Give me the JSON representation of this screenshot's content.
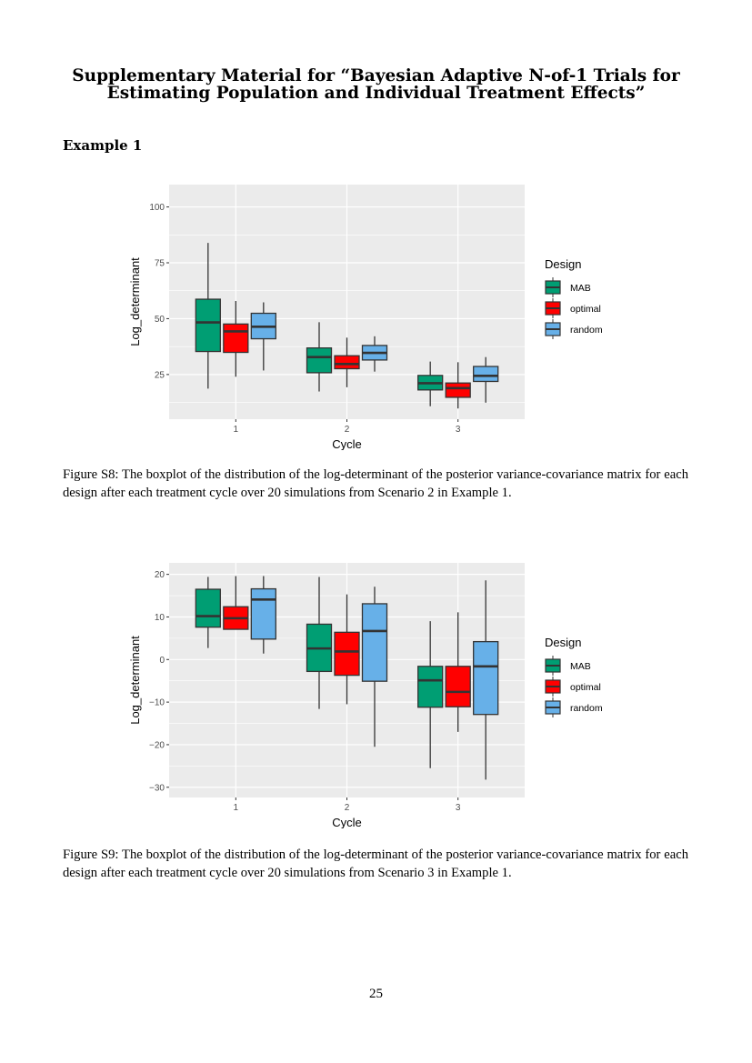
{
  "title_line1": "Supplementary Material for “Bayesian Adaptive N-of-1 Trials for",
  "title_line2": "Estimating Population and Individual Treatment Effects”",
  "section": "Example 1",
  "captions": [
    "Figure S8: The boxplot of the distribution of the log-determinant of the posterior variance-covariance matrix for each design after each treatment cycle over 20 simulations from Scenario 2 in Example 1.",
    "Figure S9: The boxplot of the distribution of the log-determinant of the posterior variance-covariance matrix for each design after each treatment cycle over 20 simulations from Scenario 3 in Example 1."
  ],
  "page_number": "25",
  "chart_data": [
    {
      "type": "boxplot",
      "xlabel": "Cycle",
      "ylabel": "Log_determinant",
      "categories": [
        "1",
        "2",
        "3"
      ],
      "ylim": [
        5,
        110
      ],
      "yticks": [
        25,
        50,
        75,
        100
      ],
      "grid": true,
      "legend": {
        "title": "Design",
        "placement": "right"
      },
      "series": [
        {
          "name": "MAB",
          "color": "#009E73",
          "boxes": [
            {
              "min": 18.7,
              "q1": 35.3,
              "median": 48.3,
              "q3": 58.7,
              "max": 83.9
            },
            {
              "min": 17.4,
              "q1": 25.8,
              "median": 32.8,
              "q3": 36.9,
              "max": 48.4
            },
            {
              "min": 10.8,
              "q1": 18.1,
              "median": 21.1,
              "q3": 24.6,
              "max": 30.8
            }
          ]
        },
        {
          "name": "optimal",
          "color": "#FF0000",
          "boxes": [
            {
              "min": 24.0,
              "q1": 34.9,
              "median": 44.3,
              "q3": 47.6,
              "max": 57.9
            },
            {
              "min": 19.3,
              "q1": 27.6,
              "median": 29.7,
              "q3": 33.4,
              "max": 41.5
            },
            {
              "min": 9.8,
              "q1": 14.8,
              "median": 18.9,
              "q3": 21.2,
              "max": 30.5
            }
          ]
        },
        {
          "name": "random",
          "color": "#67B0E8",
          "boxes": [
            {
              "min": 26.8,
              "q1": 41.0,
              "median": 46.4,
              "q3": 52.4,
              "max": 57.3
            },
            {
              "min": 26.3,
              "q1": 31.5,
              "median": 34.7,
              "q3": 38.0,
              "max": 42.1
            },
            {
              "min": 12.4,
              "q1": 21.9,
              "median": 24.4,
              "q3": 28.6,
              "max": 32.8
            }
          ]
        }
      ]
    },
    {
      "type": "boxplot",
      "xlabel": "Cycle",
      "ylabel": "Log_determinant",
      "categories": [
        "1",
        "2",
        "3"
      ],
      "ylim": [
        -32.4,
        22.7
      ],
      "yticks": [
        -30,
        -20,
        -10,
        0,
        10,
        20
      ],
      "grid": true,
      "legend": {
        "title": "Design",
        "placement": "right"
      },
      "series": [
        {
          "name": "MAB",
          "color": "#009E73",
          "boxes": [
            {
              "min": 2.7,
              "q1": 7.6,
              "median": 10.2,
              "q3": 16.5,
              "max": 19.4
            },
            {
              "min": -11.6,
              "q1": -2.8,
              "median": 2.6,
              "q3": 8.3,
              "max": 19.4
            },
            {
              "min": -25.5,
              "q1": -11.2,
              "median": -4.9,
              "q3": -1.6,
              "max": 9.0
            }
          ]
        },
        {
          "name": "optimal",
          "color": "#FF0000",
          "boxes": [
            {
              "min": 7.0,
              "q1": 7.1,
              "median": 9.7,
              "q3": 12.4,
              "max": 19.6
            },
            {
              "min": -10.5,
              "q1": -3.7,
              "median": 1.9,
              "q3": 6.4,
              "max": 15.3
            },
            {
              "min": -17.0,
              "q1": -11.1,
              "median": -7.6,
              "q3": -1.6,
              "max": 11.1
            }
          ]
        },
        {
          "name": "random",
          "color": "#67B0E8",
          "boxes": [
            {
              "min": 1.4,
              "q1": 4.8,
              "median": 14.1,
              "q3": 16.6,
              "max": 19.6
            },
            {
              "min": -20.5,
              "q1": -5.1,
              "median": 6.7,
              "q3": 13.1,
              "max": 17.1
            },
            {
              "min": -28.2,
              "q1": -12.9,
              "median": -1.6,
              "q3": 4.2,
              "max": 18.6
            }
          ]
        }
      ]
    }
  ]
}
